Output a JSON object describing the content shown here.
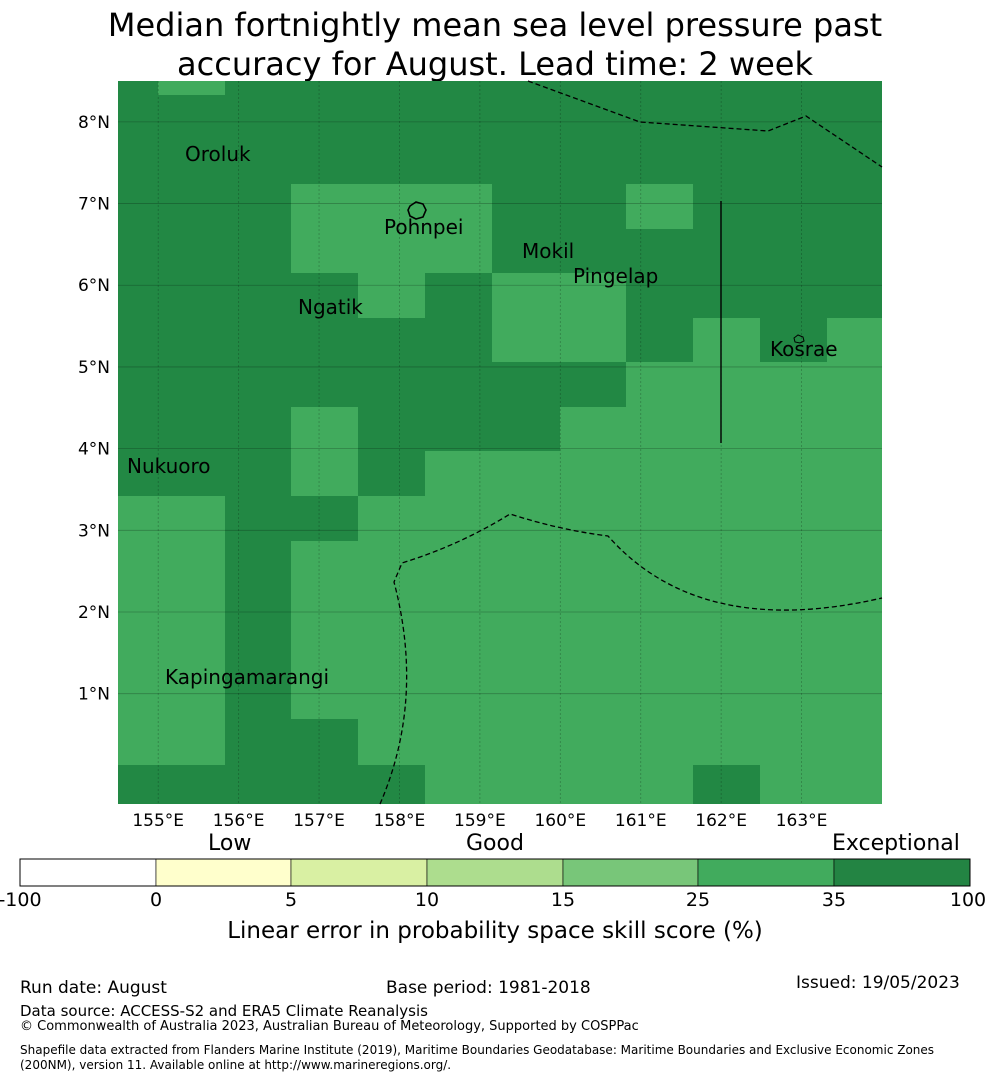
{
  "title_line1": "Median fortnightly mean sea level pressure past",
  "title_line2": "accuracy for August. Lead time: 2 week",
  "map": {
    "lon_range": [
      154.5,
      164.0
    ],
    "lat_range": [
      -0.35,
      8.5
    ],
    "lon_ticks": [
      "155°E",
      "156°E",
      "157°E",
      "158°E",
      "159°E",
      "160°E",
      "161°E",
      "162°E",
      "163°E"
    ],
    "lat_ticks": [
      "1°N",
      "2°N",
      "3°N",
      "4°N",
      "5°N",
      "6°N",
      "7°N",
      "8°N"
    ],
    "colors": {
      "exceptional_dark": "#228844",
      "good_green": "#41ab5d"
    },
    "places": [
      {
        "name": "Oroluk"
      },
      {
        "name": "Pohnpei"
      },
      {
        "name": "Mokil"
      },
      {
        "name": "Pingelap"
      },
      {
        "name": "Ngatik"
      },
      {
        "name": "Kosrae"
      },
      {
        "name": "Nukuoro"
      },
      {
        "name": "Kapingamarangi"
      }
    ]
  },
  "legend": {
    "word_low": "Low",
    "word_good": "Good",
    "word_exceptional": "Exceptional",
    "ticks": [
      "-100",
      "0",
      "5",
      "10",
      "15",
      "25",
      "35",
      "100"
    ],
    "colors": [
      "#ffffff",
      "#ffffcc",
      "#d9f0a3",
      "#addd8e",
      "#78c679",
      "#41ab5d",
      "#238443"
    ],
    "label": "Linear error in probability space skill score (%)"
  },
  "footer": {
    "run_date": "Run date: August",
    "base_period": "Base period: 1981-2018",
    "issued": "Issued: 19/05/2023",
    "data_source": "Data source: ACCESS-S2 and ERA5 Climate Reanalysis",
    "copyright": "© Commonwealth of Australia 2023, Australian Bureau of Meteorology, Supported by COSPPac",
    "shapefile_line1": "Shapefile data extracted from Flanders Marine Institute (2019), Maritime Boundaries Geodatabase: Maritime Boundaries and Exclusive Economic Zones",
    "shapefile_line2": "(200NM), version 11. Available online at http://www.marineregions.org/."
  }
}
